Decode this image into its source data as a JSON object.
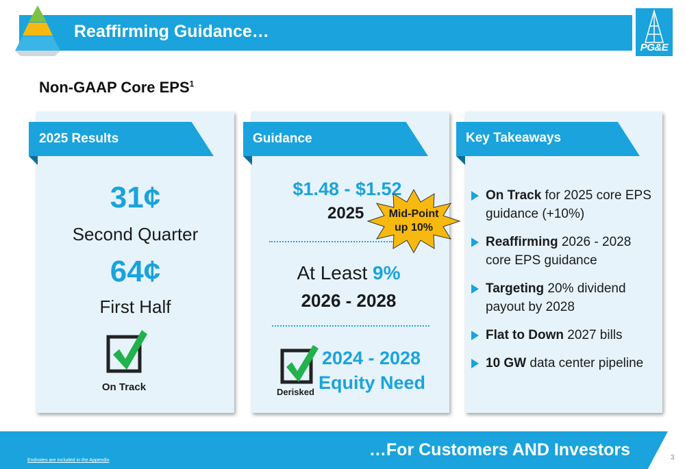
{
  "header": {
    "title": "Reaffirming Guidance…"
  },
  "logo": {
    "text": "PG&E"
  },
  "section": {
    "title": "Non-GAAP Core EPS",
    "footnote": "1"
  },
  "panels": {
    "results": {
      "tab": "2025 Results",
      "q2_value": "31¢",
      "q2_label": "Second Quarter",
      "h1_value": "64¢",
      "h1_label": "First Half",
      "status": "On Track"
    },
    "guidance": {
      "tab": "Guidance",
      "range": "$1.48 - $1.52",
      "range_year": "2025",
      "starburst_line1": "Mid-Point",
      "starburst_line2": "up 10%",
      "growth_prefix": "At Least",
      "growth_value": "9%",
      "growth_years": "2026 - 2028",
      "equity_years": "2024 - 2028",
      "equity_label": "Equity Need",
      "status": "Derisked"
    },
    "takeaways": {
      "tab": "Key Takeaways",
      "items": [
        {
          "bold": "On Track",
          "rest": " for 2025 core EPS guidance (+10%)"
        },
        {
          "bold": "Reaffirming",
          "rest": " 2026 - 2028 core EPS guidance"
        },
        {
          "bold": "Targeting",
          "rest": " 20% dividend payout by 2028"
        },
        {
          "bold": "Flat to Down",
          "rest": " 2027 bills"
        },
        {
          "bold": "10 GW",
          "rest": " data center pipeline"
        }
      ]
    }
  },
  "footer": {
    "tagline": "…For Customers AND Investors",
    "endnote": "Endnotes are included in the Appendix",
    "page_number": "3"
  },
  "colors": {
    "accent": "#1aa3dc",
    "panel_bg": "#e6f3fb",
    "check_green": "#22b14c",
    "starburst": "#f7b90f"
  }
}
